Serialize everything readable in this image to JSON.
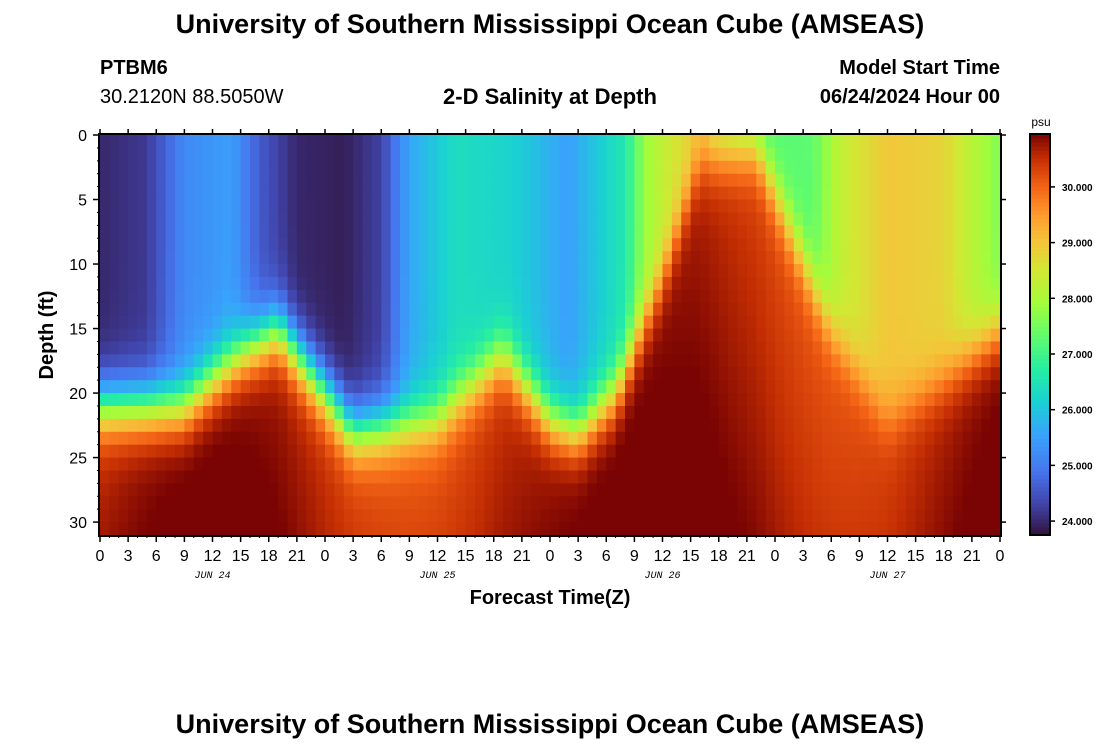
{
  "header": {
    "title": "University of Southern Mississippi Ocean Cube (AMSEAS)",
    "station": "PTBM6",
    "coordinates": "30.2120N  88.5050W",
    "subtitle": "2-D Salinity at Depth",
    "model_start_label": "Model Start Time",
    "model_start_value": "06/24/2024 Hour 00"
  },
  "footer": {
    "title": "University of Southern Mississippi Ocean Cube (AMSEAS)"
  },
  "colors": {
    "low": "#30123b",
    "high": "#7a0403"
  },
  "chart_data": {
    "type": "heatmap",
    "title": "2-D Salinity at Depth",
    "xlabel": "Forecast Time(Z)",
    "ylabel": "Depth (ft)",
    "x_ticks": [
      "0",
      "3",
      "6",
      "9",
      "12",
      "15",
      "18",
      "21",
      "0",
      "3",
      "6",
      "9",
      "12",
      "15",
      "18",
      "21",
      "0",
      "3",
      "6",
      "9",
      "12",
      "15",
      "18",
      "21",
      "0",
      "3",
      "6",
      "9",
      "12",
      "15",
      "18",
      "21",
      "0"
    ],
    "x_range_hours": [
      0,
      96
    ],
    "day_labels": [
      {
        "label": "JUN 24",
        "hour": 12
      },
      {
        "label": "JUN 25",
        "hour": 36
      },
      {
        "label": "JUN 26",
        "hour": 60
      },
      {
        "label": "JUN 27",
        "hour": 84
      }
    ],
    "y_ticks": [
      0,
      5,
      10,
      15,
      20,
      25,
      30
    ],
    "y_range_ft": [
      0,
      31
    ],
    "colorbar": {
      "unit": "psu",
      "range": [
        23.75,
        30.95
      ],
      "ticks": [
        "24.000",
        "25.000",
        "26.000",
        "27.000",
        "28.000",
        "29.000",
        "30.000"
      ]
    },
    "halocline_depth_ft_by_hour": [
      [
        0,
        21
      ],
      [
        9,
        21
      ],
      [
        15,
        17
      ],
      [
        19,
        15
      ],
      [
        24,
        20
      ],
      [
        27,
        23
      ],
      [
        36,
        22
      ],
      [
        43,
        17
      ],
      [
        48,
        22
      ],
      [
        51,
        23
      ],
      [
        55,
        20
      ],
      [
        60,
        11
      ],
      [
        64,
        2
      ],
      [
        70,
        1
      ],
      [
        78,
        15
      ],
      [
        84,
        22
      ],
      [
        90,
        19
      ],
      [
        96,
        15
      ]
    ],
    "surface_salinity_psu_by_hour": [
      [
        0,
        24.0
      ],
      [
        5,
        24.2
      ],
      [
        9,
        25.2
      ],
      [
        14,
        25.5
      ],
      [
        17,
        24.6
      ],
      [
        21,
        24.0
      ],
      [
        26,
        23.9
      ],
      [
        30,
        24.3
      ],
      [
        33,
        25.6
      ],
      [
        38,
        26.4
      ],
      [
        44,
        26.2
      ],
      [
        50,
        25.5
      ],
      [
        56,
        26.6
      ],
      [
        58,
        27.8
      ],
      [
        60,
        28.3
      ],
      [
        64,
        29.0
      ],
      [
        66,
        28.1
      ],
      [
        70,
        27.2
      ],
      [
        76,
        27.3
      ],
      [
        79,
        28.3
      ],
      [
        84,
        29.0
      ],
      [
        90,
        28.8
      ],
      [
        93,
        28.2
      ],
      [
        96,
        27.6
      ]
    ],
    "bottom_salinity_psu": [
      30.1,
      30.9
    ]
  }
}
